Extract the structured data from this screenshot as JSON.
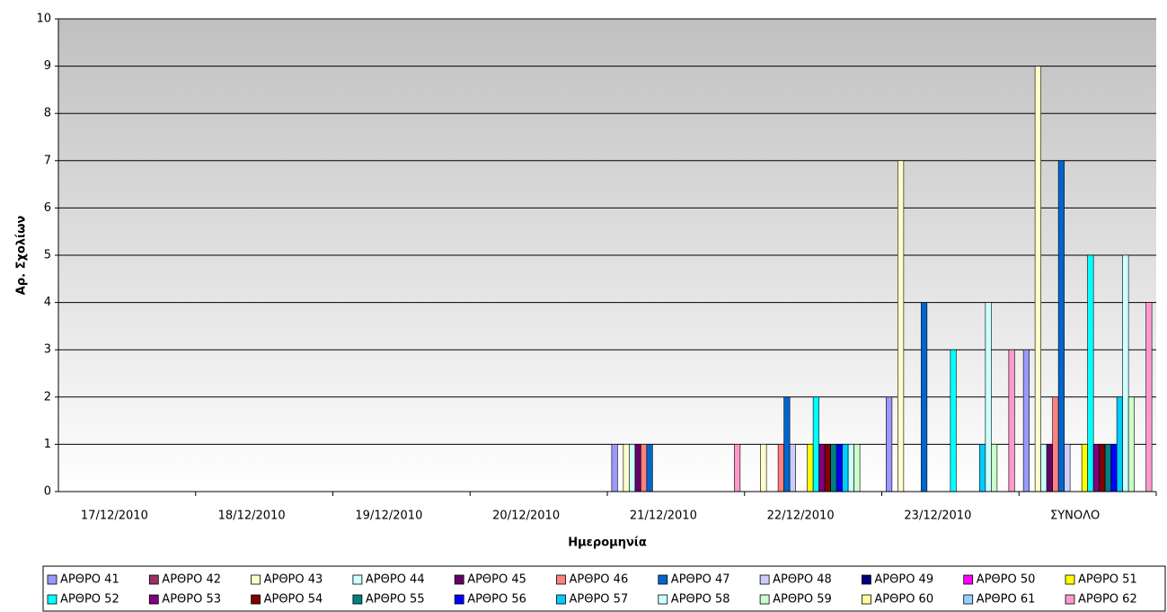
{
  "chart_data": {
    "type": "bar",
    "ylabel": "Αρ. Σχολίων",
    "xlabel": "Ημερομηνία",
    "categories": [
      "17/12/2010",
      "18/12/2010",
      "19/12/2010",
      "20/12/2010",
      "21/12/2010",
      "22/12/2010",
      "23/12/2010",
      "ΣΥΝΟΛΟ"
    ],
    "ylim": [
      0,
      10
    ],
    "yticks": [
      0,
      1,
      2,
      3,
      4,
      5,
      6,
      7,
      8,
      9,
      10
    ],
    "grid": true,
    "legend": "bottom",
    "series": [
      {
        "name": "ΑΡΘΡΟ 41",
        "color": "#9999FF",
        "values": [
          0,
          0,
          0,
          0,
          1,
          0,
          2,
          3
        ]
      },
      {
        "name": "ΑΡΘΡΟ 42",
        "color": "#993366",
        "values": [
          0,
          0,
          0,
          0,
          0,
          0,
          0,
          0
        ]
      },
      {
        "name": "ΑΡΘΡΟ 43",
        "color": "#FFFFCC",
        "values": [
          0,
          0,
          0,
          0,
          1,
          1,
          7,
          9
        ]
      },
      {
        "name": "ΑΡΘΡΟ 44",
        "color": "#CCFFFF",
        "values": [
          0,
          0,
          0,
          0,
          1,
          0,
          0,
          1
        ]
      },
      {
        "name": "ΑΡΘΡΟ 45",
        "color": "#660066",
        "values": [
          0,
          0,
          0,
          0,
          1,
          0,
          0,
          1
        ]
      },
      {
        "name": "ΑΡΘΡΟ 46",
        "color": "#FF8080",
        "values": [
          0,
          0,
          0,
          0,
          1,
          1,
          0,
          2
        ]
      },
      {
        "name": "ΑΡΘΡΟ 47",
        "color": "#0066CC",
        "values": [
          0,
          0,
          0,
          0,
          1,
          2,
          4,
          7
        ]
      },
      {
        "name": "ΑΡΘΡΟ 48",
        "color": "#CCCCFF",
        "values": [
          0,
          0,
          0,
          0,
          0,
          1,
          0,
          1
        ]
      },
      {
        "name": "ΑΡΘΡΟ 49",
        "color": "#000080",
        "values": [
          0,
          0,
          0,
          0,
          0,
          0,
          0,
          0
        ]
      },
      {
        "name": "ΑΡΘΡΟ 50",
        "color": "#FF00FF",
        "values": [
          0,
          0,
          0,
          0,
          0,
          0,
          0,
          0
        ]
      },
      {
        "name": "ΑΡΘΡΟ 51",
        "color": "#FFFF00",
        "values": [
          0,
          0,
          0,
          0,
          0,
          1,
          0,
          1
        ]
      },
      {
        "name": "ΑΡΘΡΟ 52",
        "color": "#00FFFF",
        "values": [
          0,
          0,
          0,
          0,
          0,
          2,
          3,
          5
        ]
      },
      {
        "name": "ΑΡΘΡΟ 53",
        "color": "#800080",
        "values": [
          0,
          0,
          0,
          0,
          0,
          1,
          0,
          1
        ]
      },
      {
        "name": "ΑΡΘΡΟ 54",
        "color": "#800000",
        "values": [
          0,
          0,
          0,
          0,
          0,
          1,
          0,
          1
        ]
      },
      {
        "name": "ΑΡΘΡΟ 55",
        "color": "#008080",
        "values": [
          0,
          0,
          0,
          0,
          0,
          1,
          0,
          1
        ]
      },
      {
        "name": "ΑΡΘΡΟ 56",
        "color": "#0000FF",
        "values": [
          0,
          0,
          0,
          0,
          0,
          1,
          0,
          1
        ]
      },
      {
        "name": "ΑΡΘΡΟ 57",
        "color": "#00CCFF",
        "values": [
          0,
          0,
          0,
          0,
          0,
          1,
          1,
          2
        ]
      },
      {
        "name": "ΑΡΘΡΟ 58",
        "color": "#CCFFFF",
        "values": [
          0,
          0,
          0,
          0,
          0,
          1,
          4,
          5
        ]
      },
      {
        "name": "ΑΡΘΡΟ 59",
        "color": "#CCFFCC",
        "values": [
          0,
          0,
          0,
          0,
          0,
          1,
          1,
          2
        ]
      },
      {
        "name": "ΑΡΘΡΟ 60",
        "color": "#FFFF99",
        "values": [
          0,
          0,
          0,
          0,
          0,
          0,
          0,
          0
        ]
      },
      {
        "name": "ΑΡΘΡΟ 61",
        "color": "#99CCFF",
        "values": [
          0,
          0,
          0,
          0,
          0,
          0,
          0,
          0
        ]
      },
      {
        "name": "ΑΡΘΡΟ 62",
        "color": "#FF99CC",
        "values": [
          0,
          0,
          0,
          0,
          1,
          0,
          3,
          4
        ]
      }
    ]
  }
}
